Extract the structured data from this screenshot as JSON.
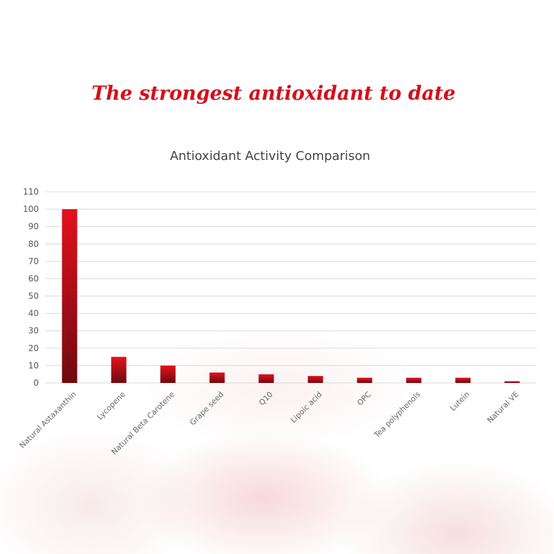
{
  "headline": "The strongest antioxidant to date",
  "chart_data": {
    "type": "bar",
    "title": "Antioxidant Activity Comparison",
    "xlabel": "",
    "ylabel": "",
    "ylim": [
      0,
      110
    ],
    "yticks": [
      0,
      10,
      20,
      30,
      40,
      50,
      60,
      70,
      80,
      90,
      100,
      110
    ],
    "grid": true,
    "categories": [
      "Natural Astaxanthin",
      "Lycopene",
      "Natural Beta Carotene",
      "Grape seed",
      "Q10",
      "Lipoic acid",
      "OPC",
      "Tea polyphenols",
      "Lutein",
      "Natural VE"
    ],
    "values": [
      100,
      15,
      10,
      6,
      5,
      4,
      3,
      3,
      3,
      1
    ],
    "colors": {
      "bar_top": "#e3111c",
      "bar_bottom": "#6f0a10",
      "grid": "#d9d9d9",
      "headline": "#d3101a"
    }
  }
}
